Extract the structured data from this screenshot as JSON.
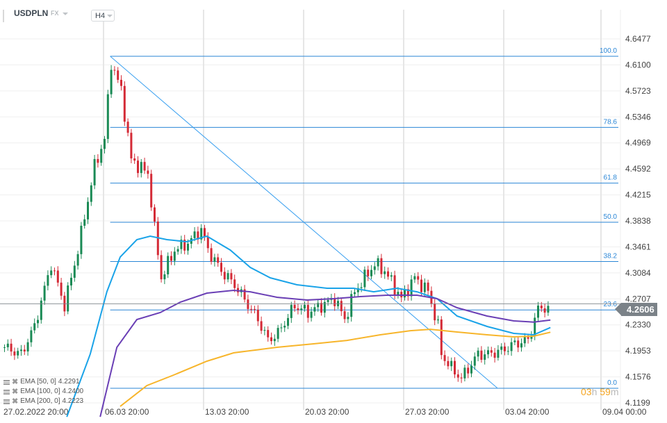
{
  "header": {
    "symbol": "USDPLN",
    "market": "FX",
    "timeframe": "H4"
  },
  "current_price": "4.2606",
  "timer": {
    "hours": "03",
    "h": "h",
    "minutes": "59",
    "m": "m"
  },
  "legend": [
    {
      "label": "EMA [50,  0]",
      "value": "4.2291"
    },
    {
      "label": "EMA [100,  0]",
      "value": "4.2400"
    },
    {
      "label": "EMA [200,  0]",
      "value": "4.2223"
    }
  ],
  "chart_data": {
    "type": "candlestick",
    "title": "",
    "ylim": [
      4.1199,
      4.6477
    ],
    "y_ticks": [
      "4.6477",
      "4.6100",
      "4.5723",
      "4.5346",
      "4.4969",
      "4.4592",
      "4.4215",
      "4.3838",
      "4.3461",
      "4.3084",
      "4.2707",
      "4.2330",
      "4.1953",
      "4.1576",
      "4.1199"
    ],
    "x_ticks": [
      {
        "label": "27.02.2022  20:00",
        "t": "2022-02-27 20:00"
      },
      {
        "label": "06.03  20:00",
        "t": "2022-03-06 20:00"
      },
      {
        "label": "13.03  20:00",
        "t": "2022-03-13 20:00"
      },
      {
        "label": "20.03  20:00",
        "t": "2022-03-20 20:00"
      },
      {
        "label": "27.03  20:00",
        "t": "2022-03-27 20:00"
      },
      {
        "label": "03.04  20:00",
        "t": "2022-04-03 20:00"
      },
      {
        "label": "09.04  00:00",
        "t": "2022-04-10 20:00"
      }
    ],
    "grid": true,
    "colors": {
      "up": "#1a8a55",
      "down": "#d42a36",
      "fib": "#2a86d6",
      "ema50": "#1aa3e8",
      "ema100": "#6a3fb5",
      "ema200": "#f7b52b",
      "last": "#7b8288"
    },
    "price_path": [
      [
        "2022-02-27 20:00",
        4.2006
      ],
      [
        "2022-02-28 16:00",
        4.1905
      ],
      [
        "2022-03-01 08:00",
        4.2308
      ],
      [
        "2022-03-02 04:00",
        4.3214
      ],
      [
        "2022-03-02 20:00",
        4.261
      ],
      [
        "2022-03-03 12:00",
        4.3416
      ],
      [
        "2022-03-04 08:00",
        4.4624
      ],
      [
        "2022-03-06 20:00",
        4.5027
      ],
      [
        "2022-03-07 04:00",
        4.6135
      ],
      [
        "2022-03-07 16:00",
        4.5732
      ],
      [
        "2022-03-08 04:00",
        4.4725
      ],
      [
        "2022-03-09 00:00",
        4.4524
      ],
      [
        "2022-03-09 08:00",
        4.3718
      ],
      [
        "2022-03-09 16:00",
        4.3013
      ],
      [
        "2022-03-10 08:00",
        4.3416
      ],
      [
        "2022-03-11 00:00",
        4.3516
      ],
      [
        "2022-03-11 16:00",
        4.3718
      ],
      [
        "2022-03-14 00:00",
        4.3416
      ],
      [
        "2022-03-14 16:00",
        4.3114
      ],
      [
        "2022-03-15 08:00",
        4.2912
      ],
      [
        "2022-03-16 12:00",
        4.2409
      ],
      [
        "2022-03-17 00:00",
        4.2107
      ],
      [
        "2022-03-17 12:00",
        4.2208
      ],
      [
        "2022-03-18 08:00",
        4.261
      ],
      [
        "2022-03-21 00:00",
        4.251
      ],
      [
        "2022-03-21 16:00",
        4.261
      ],
      [
        "2022-03-22 08:00",
        4.2711
      ],
      [
        "2022-03-22 20:00",
        4.2409
      ],
      [
        "2022-03-23 08:00",
        4.2812
      ],
      [
        "2022-03-24 08:00",
        4.3214
      ],
      [
        "2022-03-24 20:00",
        4.3114
      ],
      [
        "2022-03-25 16:00",
        4.2711
      ],
      [
        "2022-03-28 08:00",
        4.3013
      ],
      [
        "2022-03-29 00:00",
        4.2812
      ],
      [
        "2022-03-29 12:00",
        4.2308
      ],
      [
        "2022-03-29 16:00",
        4.1905
      ],
      [
        "2022-03-30 04:00",
        4.1704
      ],
      [
        "2022-03-30 16:00",
        4.1553
      ],
      [
        "2022-03-31 12:00",
        4.1905
      ],
      [
        "2022-04-01 00:00",
        4.1905
      ],
      [
        "2022-04-01 16:00",
        4.1956
      ],
      [
        "2022-04-04 08:00",
        4.2056
      ],
      [
        "2022-04-05 00:00",
        4.2107
      ],
      [
        "2022-04-05 12:00",
        4.256
      ],
      [
        "2022-04-06 00:00",
        4.2606
      ]
    ],
    "ema": [
      {
        "name": "EMA [50,  0]",
        "color": "#1aa3e8",
        "points": [
          [
            "2022-03-03 00:00",
            4.0997
          ],
          [
            "2022-03-04 04:00",
            4.1904
          ],
          [
            "2022-03-07 00:00",
            4.281
          ],
          [
            "2022-03-07 16:00",
            4.3314
          ],
          [
            "2022-03-08 12:00",
            4.3566
          ],
          [
            "2022-03-09 04:00",
            4.3616
          ],
          [
            "2022-03-10 00:00",
            4.3566
          ],
          [
            "2022-03-11 00:00",
            4.3536
          ],
          [
            "2022-03-14 00:00",
            4.3616
          ],
          [
            "2022-03-15 04:00",
            4.3415
          ],
          [
            "2022-03-16 04:00",
            4.3163
          ],
          [
            "2022-03-17 04:00",
            4.3012
          ],
          [
            "2022-03-18 12:00",
            4.2911
          ],
          [
            "2022-03-22 00:00",
            4.2861
          ],
          [
            "2022-03-23 08:00",
            4.2861
          ],
          [
            "2022-03-24 08:00",
            4.281
          ],
          [
            "2022-03-25 12:00",
            4.2861
          ],
          [
            "2022-03-28 12:00",
            4.281
          ],
          [
            "2022-03-29 12:00",
            4.271
          ],
          [
            "2022-03-30 12:00",
            4.2458
          ],
          [
            "2022-04-01 00:00",
            4.2307
          ],
          [
            "2022-04-04 08:00",
            4.2206
          ],
          [
            "2022-04-05 08:00",
            4.2186
          ],
          [
            "2022-04-06 04:00",
            4.2291
          ]
        ]
      },
      {
        "name": "EMA [100,  0]",
        "color": "#6a3fb5",
        "points": [
          [
            "2022-03-04 16:00",
            4.0997
          ],
          [
            "2022-03-07 12:00",
            4.2005
          ],
          [
            "2022-03-08 12:00",
            4.2408
          ],
          [
            "2022-03-09 16:00",
            4.2508
          ],
          [
            "2022-03-10 16:00",
            4.2659
          ],
          [
            "2022-03-14 00:00",
            4.279
          ],
          [
            "2022-03-15 08:00",
            4.2831
          ],
          [
            "2022-03-16 04:00",
            4.281
          ],
          [
            "2022-03-17 12:00",
            4.273
          ],
          [
            "2022-03-21 00:00",
            4.269
          ],
          [
            "2022-03-22 08:00",
            4.271
          ],
          [
            "2022-03-23 16:00",
            4.274
          ],
          [
            "2022-03-25 00:00",
            4.276
          ],
          [
            "2022-03-28 12:00",
            4.276
          ],
          [
            "2022-03-29 12:00",
            4.271
          ],
          [
            "2022-03-30 12:00",
            4.2579
          ],
          [
            "2022-04-01 00:00",
            4.2458
          ],
          [
            "2022-04-04 08:00",
            4.2388
          ],
          [
            "2022-04-05 08:00",
            4.237
          ],
          [
            "2022-04-06 04:00",
            4.24
          ]
        ]
      },
      {
        "name": "EMA [200,  0]",
        "color": "#f7b52b",
        "points": [
          [
            "2022-03-07 16:00",
            4.1148
          ],
          [
            "2022-03-09 00:00",
            4.145
          ],
          [
            "2022-03-10 08:00",
            4.1602
          ],
          [
            "2022-03-14 00:00",
            4.1803
          ],
          [
            "2022-03-15 08:00",
            4.1924
          ],
          [
            "2022-03-17 12:00",
            4.2005
          ],
          [
            "2022-03-21 08:00",
            4.2055
          ],
          [
            "2022-03-23 00:00",
            4.2105
          ],
          [
            "2022-03-24 16:00",
            4.2186
          ],
          [
            "2022-03-28 04:00",
            4.2246
          ],
          [
            "2022-03-29 04:00",
            4.2266
          ],
          [
            "2022-03-30 12:00",
            4.2226
          ],
          [
            "2022-04-01 00:00",
            4.2186
          ],
          [
            "2022-04-04 08:00",
            4.2156
          ],
          [
            "2022-04-05 08:00",
            4.2166
          ],
          [
            "2022-04-06 04:00",
            4.2223
          ]
        ]
      }
    ],
    "fibonacci": {
      "high": 4.6225,
      "low": 4.141,
      "start": "2022-03-07 04:00",
      "end": "2022-03-31 20:00",
      "levels": [
        {
          "label": "100.0",
          "value": 1.0
        },
        {
          "label": "78.6",
          "value": 0.786
        },
        {
          "label": "61.8",
          "value": 0.618
        },
        {
          "label": "50.0",
          "value": 0.5
        },
        {
          "label": "38.2",
          "value": 0.382
        },
        {
          "label": "23.6",
          "value": 0.236
        },
        {
          "label": "0.0",
          "value": 0.0
        }
      ]
    },
    "last_price": 4.2606
  }
}
